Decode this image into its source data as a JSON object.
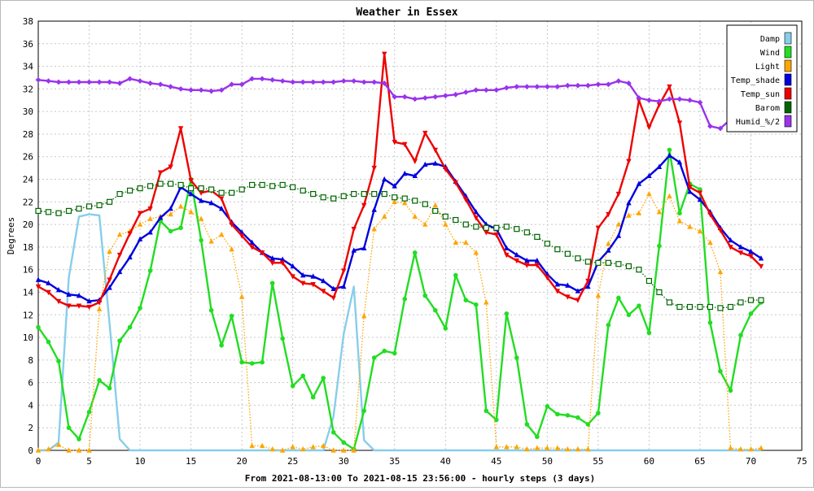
{
  "chart_data": {
    "type": "line",
    "title": "Weather in Essex",
    "xlabel": "From 2021-08-13:00 To 2021-08-15 23:56:00 - hourly steps (3 days)",
    "ylabel": "Degrees",
    "xlim": [
      0,
      75
    ],
    "ylim": [
      0,
      38
    ],
    "x_ticks": [
      0,
      5,
      10,
      15,
      20,
      25,
      30,
      35,
      40,
      45,
      50,
      55,
      60,
      65,
      70,
      75
    ],
    "y_ticks": [
      0,
      2,
      4,
      6,
      8,
      10,
      12,
      14,
      16,
      18,
      20,
      22,
      24,
      26,
      28,
      30,
      32,
      34,
      36,
      38
    ],
    "grid": true,
    "legend_position": "top-right",
    "x": [
      0,
      1,
      2,
      3,
      4,
      5,
      6,
      7,
      8,
      9,
      10,
      11,
      12,
      13,
      14,
      15,
      16,
      17,
      18,
      19,
      20,
      21,
      22,
      23,
      24,
      25,
      26,
      27,
      28,
      29,
      30,
      31,
      32,
      33,
      34,
      35,
      36,
      37,
      38,
      39,
      40,
      41,
      42,
      43,
      44,
      45,
      46,
      47,
      48,
      49,
      50,
      51,
      52,
      53,
      54,
      55,
      56,
      57,
      58,
      59,
      60,
      61,
      62,
      63,
      64,
      65,
      66,
      67,
      68,
      69,
      70,
      71
    ],
    "series": [
      {
        "name": "Damp",
        "color": "#87ceeb",
        "marker": "none",
        "style": "solid",
        "values": [
          0,
          0,
          0.7,
          15.3,
          20.7,
          20.9,
          20.8,
          11.3,
          1.0,
          0,
          0,
          0,
          0,
          0,
          0,
          0,
          0,
          0,
          0,
          0,
          0,
          0,
          0,
          0,
          0,
          0,
          0,
          0,
          0,
          3.0,
          10.3,
          14.5,
          0.9,
          0,
          0,
          0,
          0,
          0,
          0,
          0,
          0,
          0,
          0,
          0,
          0,
          0,
          0,
          0,
          0,
          0,
          0,
          0,
          0,
          0,
          0,
          0,
          0,
          0,
          0,
          0,
          0,
          0,
          0,
          0,
          0,
          0,
          0,
          0,
          0,
          0,
          0,
          0
        ]
      },
      {
        "name": "Wind",
        "color": "#22dd22",
        "marker": "circle",
        "style": "solid",
        "values": [
          10.9,
          9.6,
          7.9,
          2.0,
          1.0,
          3.4,
          6.2,
          5.5,
          9.7,
          10.9,
          12.6,
          15.9,
          20.3,
          19.4,
          19.7,
          24.0,
          18.6,
          12.4,
          9.3,
          11.9,
          7.8,
          7.7,
          7.8,
          14.8,
          9.9,
          5.7,
          6.6,
          4.7,
          6.4,
          1.6,
          0.7,
          0.1,
          3.5,
          8.2,
          8.8,
          8.6,
          13.4,
          17.5,
          13.7,
          12.4,
          10.8,
          15.5,
          13.3,
          12.9,
          3.5,
          2.7,
          12.1,
          8.2,
          2.3,
          1.2,
          3.9,
          3.2,
          3.1,
          2.9,
          2.3,
          3.3,
          11.1,
          13.5,
          12.0,
          12.8,
          10.4,
          18.1,
          26.6,
          21.0,
          23.6,
          23.1,
          11.3,
          7.0,
          5.3,
          10.2,
          12.1,
          13.1
        ]
      },
      {
        "name": "Light",
        "color": "#ffa500",
        "marker": "triangle-up",
        "style": "dotted",
        "values": [
          0,
          0.1,
          0.5,
          0,
          0,
          0,
          12.5,
          17.6,
          19.1,
          19.4,
          20.0,
          20.5,
          20.7,
          20.9,
          21.6,
          21.1,
          20.5,
          18.5,
          19.1,
          17.8,
          13.6,
          0.4,
          0.4,
          0.1,
          0,
          0.3,
          0.1,
          0.3,
          0.4,
          0,
          0,
          0,
          11.9,
          19.6,
          20.7,
          22.0,
          21.9,
          20.7,
          20.0,
          21.7,
          20.0,
          18.4,
          18.4,
          17.5,
          13.1,
          0.3,
          0.3,
          0.3,
          0.1,
          0.2,
          0.2,
          0.2,
          0.1,
          0.1,
          0.1,
          13.7,
          18.3,
          20.0,
          20.8,
          21.0,
          22.7,
          21.1,
          22.5,
          20.3,
          19.8,
          19.4,
          18.4,
          15.8,
          0.2,
          0.1,
          0.1,
          0.2
        ]
      },
      {
        "name": "Temp_shade",
        "color": "#0000dd",
        "marker": "triangle-up",
        "style": "solid",
        "values": [
          15.1,
          14.8,
          14.2,
          13.8,
          13.7,
          13.2,
          13.3,
          14.4,
          15.8,
          17.1,
          18.7,
          19.3,
          20.6,
          21.4,
          23.3,
          22.7,
          22.1,
          21.9,
          21.4,
          20.2,
          19.3,
          18.4,
          17.5,
          17.0,
          16.9,
          16.3,
          15.5,
          15.4,
          15.0,
          14.3,
          14.5,
          17.7,
          17.9,
          21.3,
          24.0,
          23.4,
          24.5,
          24.3,
          25.3,
          25.4,
          25.1,
          23.8,
          22.5,
          21.1,
          20.0,
          19.6,
          17.9,
          17.3,
          16.8,
          16.8,
          15.6,
          14.7,
          14.6,
          14.1,
          14.5,
          16.7,
          17.7,
          19.0,
          21.9,
          23.6,
          24.3,
          25.1,
          26.1,
          25.5,
          22.9,
          22.2,
          21.1,
          19.7,
          18.6,
          18.0,
          17.6,
          17.0
        ]
      },
      {
        "name": "Temp_sun",
        "color": "#ee0000",
        "marker": "triangle-down",
        "style": "solid",
        "values": [
          14.5,
          14.0,
          13.2,
          12.8,
          12.8,
          12.7,
          13.1,
          15.1,
          17.3,
          19.2,
          21.0,
          21.4,
          24.6,
          25.1,
          28.5,
          23.9,
          22.8,
          23.0,
          22.3,
          20.0,
          19.0,
          18.0,
          17.5,
          16.6,
          16.6,
          15.4,
          14.8,
          14.7,
          14.1,
          13.5,
          15.9,
          19.6,
          21.7,
          25.0,
          35.1,
          27.3,
          27.1,
          25.6,
          28.1,
          26.6,
          24.9,
          23.7,
          22.2,
          20.6,
          19.3,
          19.1,
          17.3,
          16.8,
          16.4,
          16.4,
          15.3,
          14.1,
          13.6,
          13.3,
          15.0,
          19.7,
          20.9,
          22.7,
          25.6,
          31.0,
          28.6,
          30.6,
          32.2,
          29.0,
          23.3,
          22.8,
          20.9,
          19.5,
          18.0,
          17.5,
          17.2,
          16.3
        ]
      },
      {
        "name": "Barom",
        "color": "#006600",
        "marker": "square",
        "style": "dotted",
        "values": [
          21.2,
          21.1,
          21.0,
          21.2,
          21.4,
          21.6,
          21.7,
          22.0,
          22.7,
          23.0,
          23.2,
          23.4,
          23.6,
          23.6,
          23.5,
          23.2,
          23.2,
          23.1,
          22.8,
          22.8,
          23.1,
          23.5,
          23.5,
          23.4,
          23.5,
          23.3,
          23.0,
          22.7,
          22.4,
          22.3,
          22.5,
          22.7,
          22.7,
          22.7,
          22.7,
          22.4,
          22.3,
          22.1,
          21.8,
          21.2,
          20.7,
          20.4,
          20.0,
          19.8,
          19.7,
          19.7,
          19.8,
          19.6,
          19.3,
          18.9,
          18.3,
          17.8,
          17.4,
          17.0,
          16.7,
          16.6,
          16.6,
          16.5,
          16.3,
          16.0,
          15.0,
          14.0,
          13.1,
          12.7,
          12.7,
          12.7,
          12.7,
          12.6,
          12.7,
          13.1,
          13.3,
          13.3
        ]
      },
      {
        "name": "Humid_%/2",
        "color": "#9933ee",
        "marker": "diamond",
        "style": "solid",
        "values": [
          32.8,
          32.7,
          32.6,
          32.6,
          32.6,
          32.6,
          32.6,
          32.6,
          32.5,
          32.9,
          32.7,
          32.5,
          32.4,
          32.2,
          32.0,
          31.9,
          31.9,
          31.8,
          31.9,
          32.4,
          32.4,
          32.9,
          32.9,
          32.8,
          32.7,
          32.6,
          32.6,
          32.6,
          32.6,
          32.6,
          32.7,
          32.7,
          32.6,
          32.6,
          32.5,
          31.3,
          31.3,
          31.1,
          31.2,
          31.3,
          31.4,
          31.5,
          31.7,
          31.9,
          31.9,
          31.9,
          32.1,
          32.2,
          32.2,
          32.2,
          32.2,
          32.2,
          32.3,
          32.3,
          32.3,
          32.4,
          32.4,
          32.7,
          32.5,
          31.2,
          31.0,
          30.9,
          31.1,
          31.1,
          31.0,
          30.8,
          28.7,
          28.5,
          29.3,
          32.4,
          null,
          null
        ]
      }
    ]
  }
}
